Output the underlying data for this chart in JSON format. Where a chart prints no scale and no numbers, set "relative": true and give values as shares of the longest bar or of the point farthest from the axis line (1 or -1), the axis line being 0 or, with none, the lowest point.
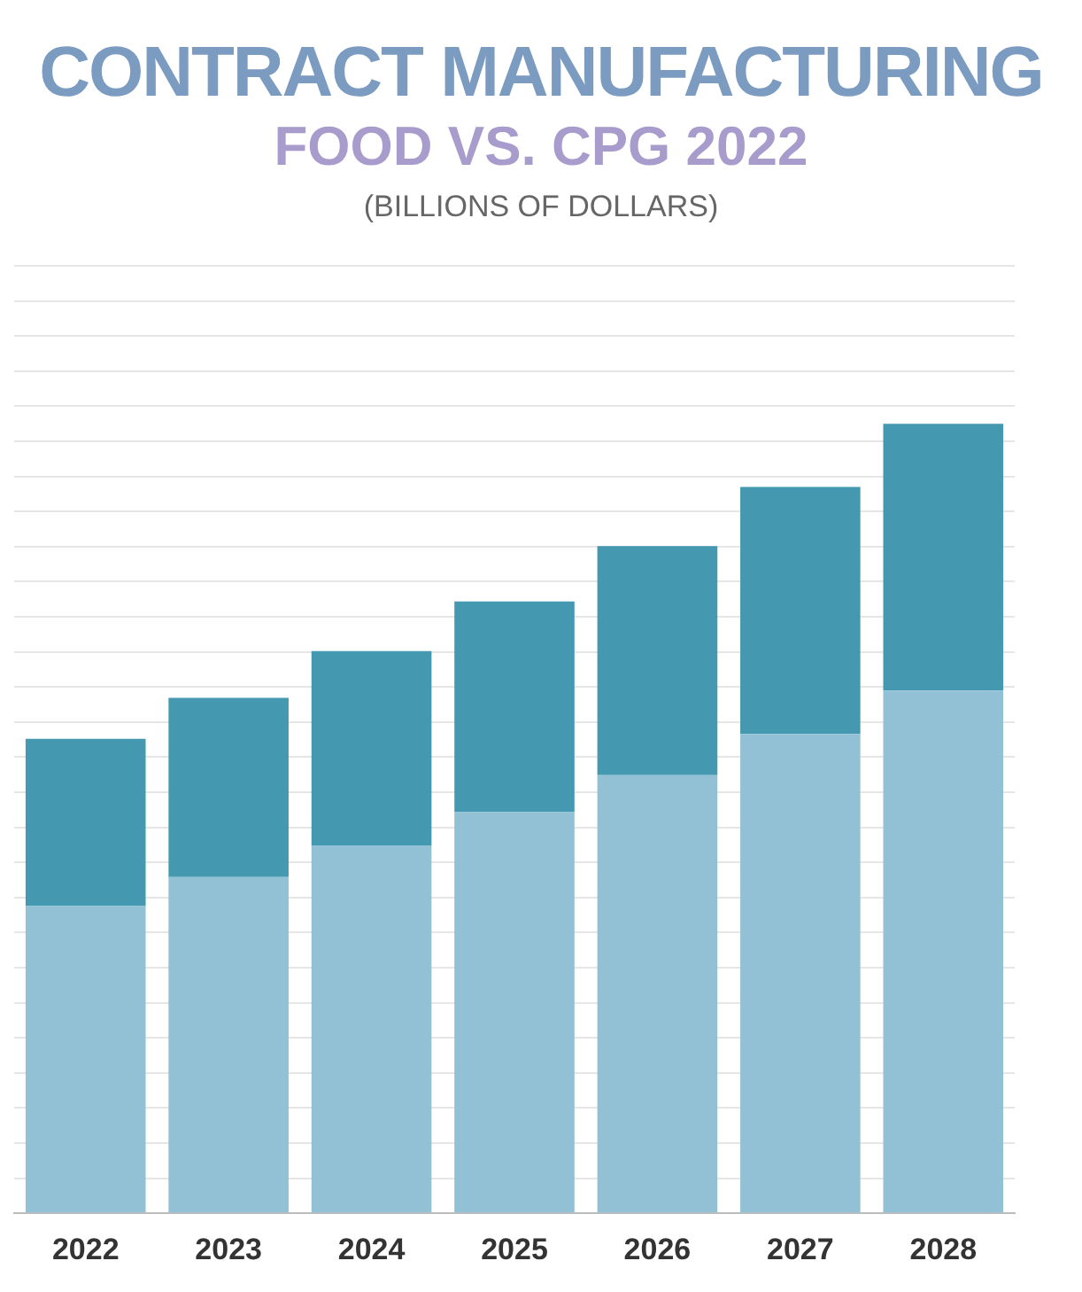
{
  "chart_data": {
    "type": "bar",
    "title": "CONTRACT MANUFACTURING",
    "subtitle": "FOOD VS. CPG 2022",
    "annotations": [
      "(BILLIONS OF DOLLARS)"
    ],
    "categories": [
      "2022",
      "2023",
      "2024",
      "2025",
      "2026",
      "2027",
      "2028"
    ],
    "stacked": true,
    "relative": true,
    "grid": "y",
    "legend": false,
    "series": [
      {
        "color": "#92c1d5",
        "values": [
          0.389,
          0.426,
          0.466,
          0.508,
          0.555,
          0.607,
          0.662
        ]
      },
      {
        "color": "#4499b0",
        "values": [
          0.212,
          0.227,
          0.246,
          0.267,
          0.29,
          0.313,
          0.338
        ]
      }
    ]
  }
}
